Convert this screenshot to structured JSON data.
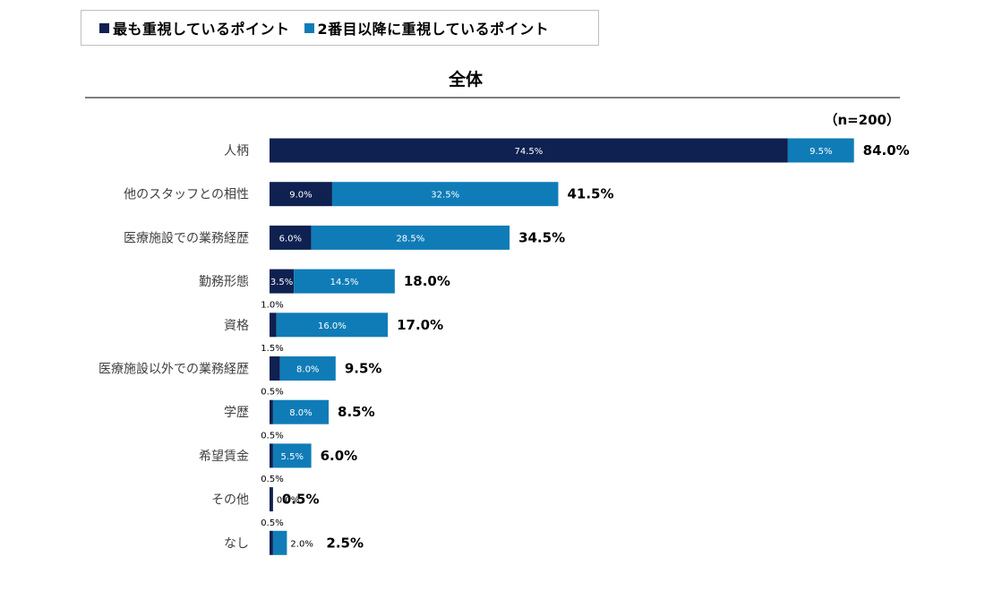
{
  "legend": {
    "primary_label": "最も重視しているポイント",
    "secondary_label": "2番目以降に重視しているポイント"
  },
  "colors": {
    "primary": "#0e2150",
    "secondary": "#0f7cb7"
  },
  "chart_data": {
    "type": "bar",
    "orientation": "horizontal",
    "stacked": true,
    "title": "全体",
    "sample_note": "（n=200）",
    "categories": [
      "人柄",
      "他のスタッフとの相性",
      "医療施設での業務経歴",
      "勤務形態",
      "資格",
      "医療施設以外での業務経歴",
      "学歴",
      "希望賃金",
      "その他",
      "なし"
    ],
    "series": [
      {
        "name": "最も重視しているポイント",
        "values": [
          74.5,
          9.0,
          6.0,
          3.5,
          1.0,
          1.5,
          0.5,
          0.5,
          0.5,
          0.5
        ],
        "labels": [
          "74.5%",
          "9.0%",
          "6.0%",
          "3.5%",
          "1.0%",
          "1.5%",
          "0.5%",
          "0.5%",
          "0.5%",
          "0.5%"
        ]
      },
      {
        "name": "2番目以降に重視しているポイント",
        "values": [
          9.5,
          32.5,
          28.5,
          14.5,
          16.0,
          8.0,
          8.0,
          5.5,
          0.0,
          2.0
        ],
        "labels": [
          "9.5%",
          "32.5%",
          "28.5%",
          "14.5%",
          "16.0%",
          "8.0%",
          "8.0%",
          "5.5%",
          "0.0%",
          "2.0%"
        ]
      }
    ],
    "totals": [
      84.0,
      41.5,
      34.5,
      18.0,
      17.0,
      9.5,
      8.5,
      6.0,
      0.5,
      2.5
    ],
    "total_labels": [
      "84.0%",
      "41.5%",
      "34.5%",
      "18.0%",
      "17.0%",
      "9.5%",
      "8.5%",
      "6.0%",
      "0.5%",
      "2.5%"
    ],
    "xlim": [
      0,
      100
    ],
    "grid": false,
    "legend_position": "top-left"
  }
}
